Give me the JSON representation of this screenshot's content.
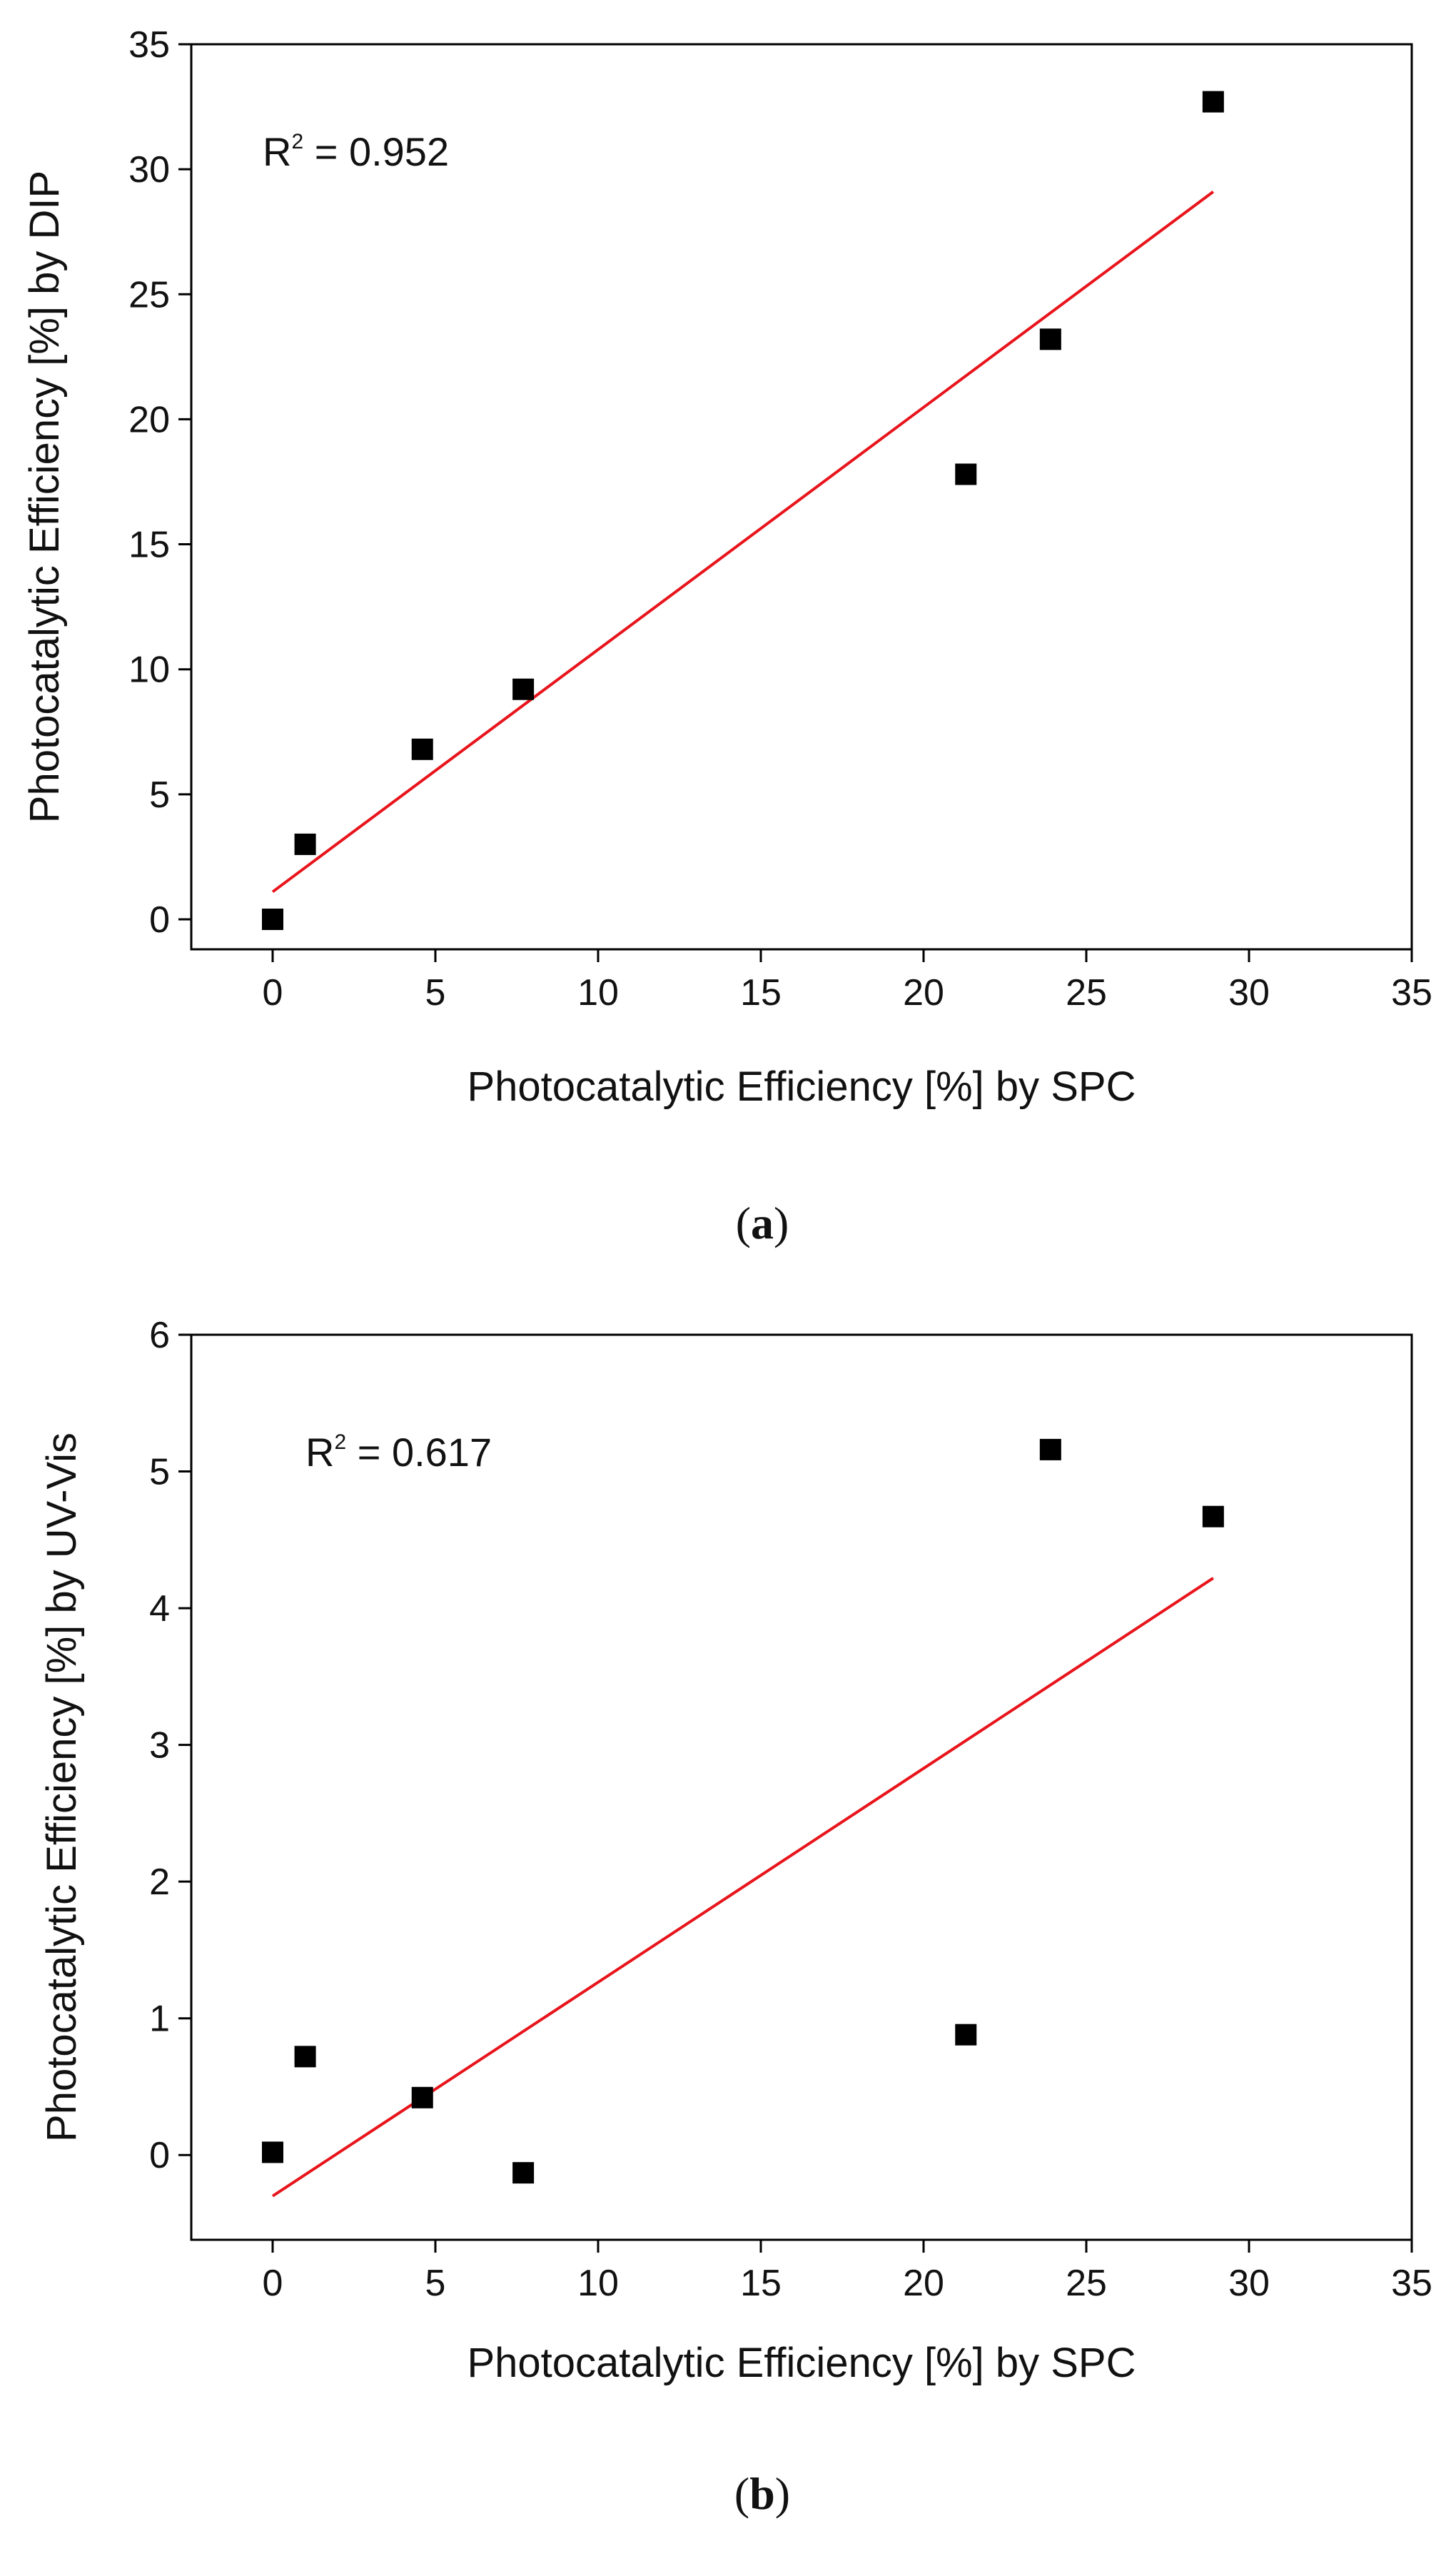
{
  "chart_data": [
    {
      "type": "scatter",
      "panel": "a",
      "xlabel": "Photocatalytic Efficiency [%] by SPC",
      "ylabel": "Photocatalytic Efficiency [%] by DIP",
      "xlim": [
        -2.5,
        35
      ],
      "ylim": [
        -1.2,
        35
      ],
      "xticks": [
        0,
        5,
        10,
        15,
        20,
        25,
        30,
        35
      ],
      "yticks": [
        0,
        5,
        10,
        15,
        20,
        25,
        30,
        35
      ],
      "points": [
        {
          "x": 0,
          "y": 0
        },
        {
          "x": 1,
          "y": 3
        },
        {
          "x": 4.6,
          "y": 6.8
        },
        {
          "x": 7.7,
          "y": 9.2
        },
        {
          "x": 21.3,
          "y": 17.8
        },
        {
          "x": 23.9,
          "y": 23.2
        },
        {
          "x": 28.9,
          "y": 32.7
        }
      ],
      "fit": {
        "x0": 0,
        "x1": 28.9,
        "y0": 1.1,
        "y1": 29.1
      },
      "r2_label": "R",
      "r2_sup": "2",
      "r2_value": " = 0.952",
      "caption": {
        "open": "(",
        "letter": "a",
        "close": ")"
      },
      "colors": {
        "points": "#000000",
        "fit": "#e8141b"
      }
    },
    {
      "type": "scatter",
      "panel": "b",
      "xlabel": "Photocatalytic Efficiency [%] by SPC",
      "ylabel": "Photocatalytic Efficiency [%] by UV-Vis",
      "xlim": [
        -2.5,
        35
      ],
      "ylim": [
        -0.62,
        6
      ],
      "xticks": [
        0,
        5,
        10,
        15,
        20,
        25,
        30,
        35
      ],
      "yticks": [
        0,
        1,
        2,
        3,
        4,
        5,
        6
      ],
      "points": [
        {
          "x": 0,
          "y": 0.02
        },
        {
          "x": 1,
          "y": 0.72
        },
        {
          "x": 4.6,
          "y": 0.42
        },
        {
          "x": 7.7,
          "y": -0.13
        },
        {
          "x": 21.3,
          "y": 0.88
        },
        {
          "x": 23.9,
          "y": 5.16
        },
        {
          "x": 28.9,
          "y": 4.67
        }
      ],
      "fit": {
        "x0": 0,
        "x1": 28.9,
        "y0": -0.3,
        "y1": 4.22
      },
      "r2_label": "R",
      "r2_sup": "2",
      "r2_value": " = 0.617",
      "caption": {
        "open": "(",
        "letter": "b",
        "close": ")"
      },
      "colors": {
        "points": "#000000",
        "fit": "#e8141b"
      }
    }
  ]
}
